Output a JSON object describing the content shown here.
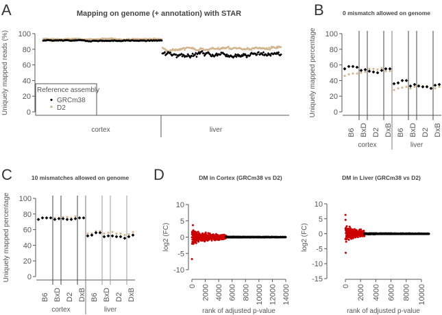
{
  "panel_labels": [
    "A",
    "B",
    "C",
    "D"
  ],
  "chart_data": [
    {
      "id": "A",
      "type": "scatter",
      "title": "Mapping on genome (+ annotation) with STAR",
      "ylabel": "Uniquely mapped reads (%)",
      "ylim": [
        0,
        100
      ],
      "yticks": [
        0,
        20,
        40,
        60,
        80,
        100
      ],
      "categories": [
        "cortex",
        "liver"
      ],
      "legend": {
        "title": "Reference assembly",
        "placement": "bottom-left",
        "entries": [
          "GRCm38",
          "D2"
        ]
      },
      "series": [
        {
          "name": "GRCm38",
          "color": "#000000",
          "marker": "diamond",
          "cortex_mean": 91,
          "cortex_spread": 0.8,
          "liver_mean": 74,
          "liver_spread": 4
        },
        {
          "name": "D2",
          "color": "#d2b48c",
          "marker": "square",
          "cortex_mean": 93,
          "cortex_spread": 0.8,
          "liver_mean": 81,
          "liver_spread": 2.5
        }
      ],
      "points_per_tissue": 150
    },
    {
      "id": "B",
      "type": "scatter",
      "title": "0 mismatch allowed on genome",
      "ylabel": "Uniquely mapped percentage",
      "ylim": [
        0,
        100
      ],
      "yticks": [
        0,
        20,
        40,
        60,
        80,
        100
      ],
      "tissues": [
        "cortex",
        "liver"
      ],
      "groups": [
        "B6",
        "BxD",
        "D2",
        "DxB"
      ],
      "series": [
        {
          "name": "GRCm38",
          "color": "#000000",
          "cortex": [
            [
              55,
              58,
              58,
              57
            ],
            [
              53,
              54
            ],
            [
              52,
              51,
              50,
              53
            ],
            [
              55,
              55
            ]
          ],
          "liver": [
            [
              36,
              37,
              40,
              40
            ],
            [
              33,
              35
            ],
            [
              33,
              32,
              32,
              30
            ],
            [
              34,
              35
            ]
          ]
        },
        {
          "name": "D2",
          "color": "#d2b48c",
          "cortex": [
            [
              46,
              48,
              49,
              49
            ],
            [
              50,
              51
            ],
            [
              55,
              55,
              54,
              56
            ],
            [
              52,
              52
            ]
          ],
          "liver": [
            [
              28,
              30,
              31,
              32
            ],
            [
              30,
              32
            ],
            [
              34,
              33,
              33,
              30
            ],
            [
              30,
              32
            ]
          ]
        }
      ]
    },
    {
      "id": "C",
      "type": "scatter",
      "title": "10 mismatches allowed on genome",
      "ylabel": "Uniquely mapped percentage",
      "ylim": [
        0,
        100
      ],
      "yticks": [
        0,
        20,
        40,
        60,
        80,
        100
      ],
      "tissues": [
        "cortex",
        "liver"
      ],
      "groups": [
        "B6",
        "BxD",
        "D2",
        "DxB"
      ],
      "series": [
        {
          "name": "GRCm38",
          "color": "#000000",
          "cortex": [
            [
              73,
              75,
              75,
              75
            ],
            [
              73,
              74
            ],
            [
              74,
              73,
              73,
              74
            ],
            [
              75,
              75
            ]
          ],
          "liver": [
            [
              52,
              53,
              56,
              56
            ],
            [
              51,
              52
            ],
            [
              52,
              51,
              51,
              49
            ],
            [
              51,
              53
            ]
          ]
        },
        {
          "name": "D2",
          "color": "#d2b48c",
          "cortex": [
            [
              73,
              75,
              75,
              75
            ],
            [
              75,
              75
            ],
            [
              76,
              76,
              75,
              77
            ],
            [
              75,
              75
            ]
          ],
          "liver": [
            [
              55,
              55,
              58,
              58
            ],
            [
              55,
              56
            ],
            [
              57,
              55,
              55,
              53
            ],
            [
              54,
              57
            ]
          ]
        }
      ]
    },
    {
      "id": "D1",
      "type": "scatter",
      "title": "DM in Cortex (GRCm38 vs D2)",
      "xlabel": "rank of adjusted p-value",
      "ylabel": "log2 (FC)",
      "xlim": [
        0,
        14000
      ],
      "xticks": [
        0,
        2000,
        4000,
        6000,
        8000,
        10000,
        12000,
        14000
      ],
      "ylim": [
        -12.5,
        12.5
      ],
      "yticks": [
        -10,
        -5,
        0,
        5,
        10
      ],
      "n_points": 14000,
      "significant_until_rank": 5100,
      "max_abs_fc": 12,
      "colors": {
        "significant": "#cc0000",
        "non_significant": "#000000"
      }
    },
    {
      "id": "D2",
      "type": "scatter",
      "title": "DM in Liver (GRCm38 vs D2)",
      "xlabel": "rank of adjusted p-value",
      "ylabel": "log2 (FC)",
      "xlim": [
        0,
        11000
      ],
      "xticks": [
        0,
        2000,
        4000,
        6000,
        8000,
        10000
      ],
      "ylim": [
        -15,
        12.5
      ],
      "yticks": [
        -15,
        -10,
        -5,
        0,
        5,
        10
      ],
      "n_points": 11000,
      "significant_until_rank": 2500,
      "max_abs_fc": 14,
      "colors": {
        "significant": "#cc0000",
        "non_significant": "#000000"
      }
    }
  ]
}
